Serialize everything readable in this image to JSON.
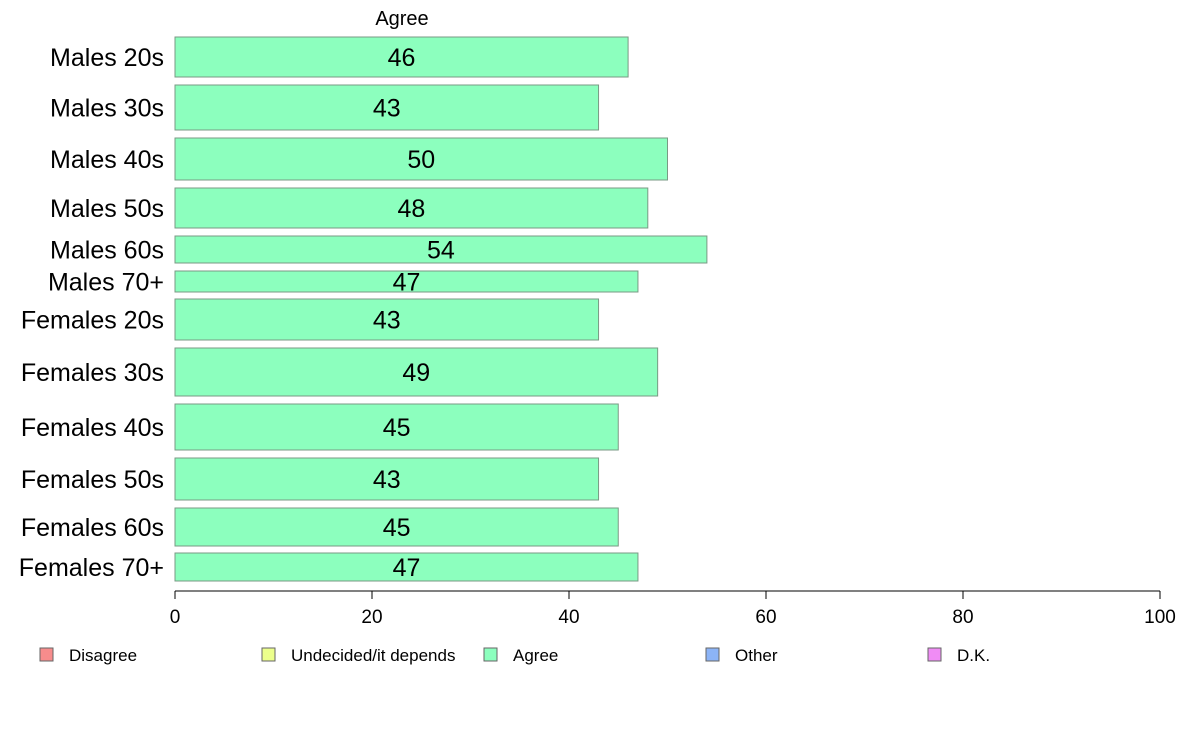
{
  "chart_data": {
    "type": "bar",
    "orientation": "horizontal",
    "stacked": true,
    "panel_title": "Agree",
    "categories": [
      "Males 20s",
      "Males 30s",
      "Males 40s",
      "Males 50s",
      "Males 60s",
      "Males 70+",
      "Females 20s",
      "Females 30s",
      "Females 40s",
      "Females 50s",
      "Females 60s",
      "Females 70+"
    ],
    "series": [
      {
        "name": "Agree",
        "color": "#8cffbe",
        "values": [
          46,
          43,
          50,
          48,
          54,
          47,
          43,
          49,
          45,
          43,
          45,
          47
        ]
      }
    ],
    "xlim": [
      0,
      100
    ],
    "xticks": [
      0,
      20,
      40,
      60,
      80,
      100
    ],
    "grid": false,
    "legend_position": "bottom",
    "legend": [
      {
        "label": "Disagree",
        "color": "#f78c8c"
      },
      {
        "label": "Undecided/it depends",
        "color": "#ecff8c"
      },
      {
        "label": "Agree",
        "color": "#8cffbe"
      },
      {
        "label": "Other",
        "color": "#8cb4f7"
      },
      {
        "label": "D.K.",
        "color": "#f08cf5"
      }
    ]
  }
}
